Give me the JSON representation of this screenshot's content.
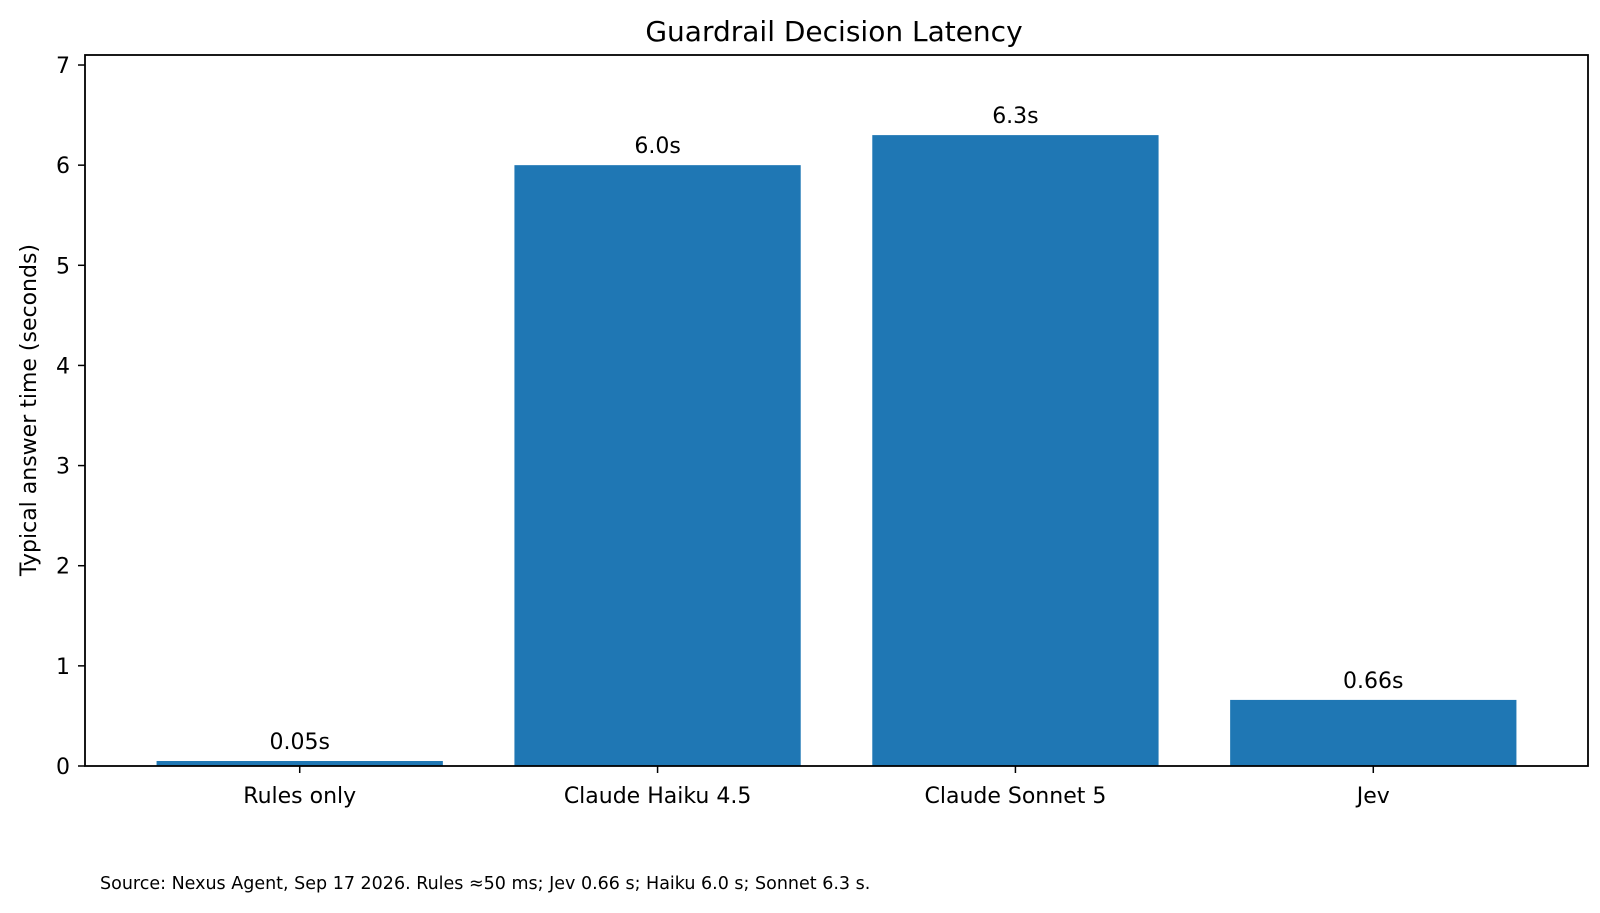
{
  "chart_data": {
    "type": "bar",
    "title": "Guardrail Decision Latency",
    "xlabel": "",
    "ylabel": "Typical answer time (seconds)",
    "categories": [
      "Rules only",
      "Claude Haiku 4.5",
      "Claude Sonnet 5",
      "Jev"
    ],
    "values": [
      0.05,
      6.0,
      6.3,
      0.66
    ],
    "data_labels": [
      "0.05s",
      "6.0s",
      "6.3s",
      "0.66s"
    ],
    "ylim": [
      0,
      7.1
    ],
    "yticks": [
      0,
      1,
      2,
      3,
      4,
      5,
      6,
      7
    ],
    "bar_color": "#1f77b4",
    "grid": false,
    "legend": "none"
  },
  "footnote": "Source: Nexus Agent, Sep 17 2026. Rules ≈50 ms; Jev 0.66 s; Haiku 6.0 s; Sonnet 6.3 s."
}
